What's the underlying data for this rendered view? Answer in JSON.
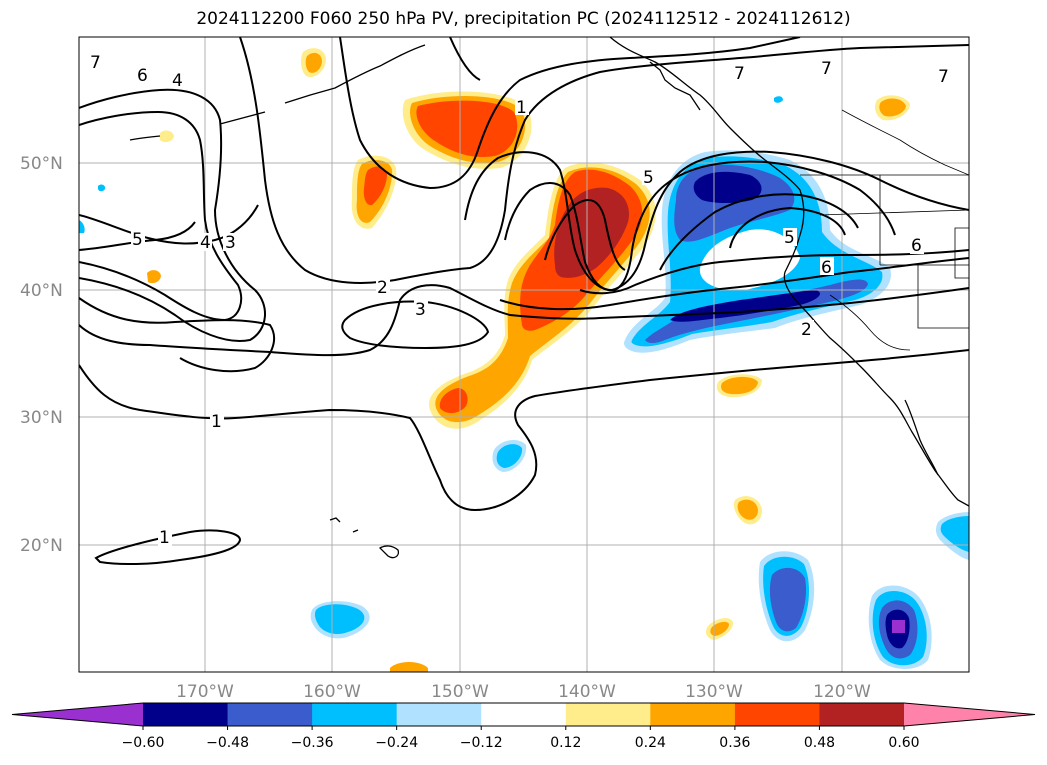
{
  "title": "2024112200 F060 250 hPa PV, precipitation PC (2024112512 - 2024112612)",
  "latitude_labels": [
    "50°N",
    "40°N",
    "30°N",
    "20°N"
  ],
  "longitude_labels": [
    "170°W",
    "160°W",
    "150°W",
    "140°W",
    "130°W",
    "120°W"
  ],
  "pv_contour_labels": [
    "7",
    "6",
    "4",
    "5",
    "4",
    "3",
    "2",
    "3",
    "1",
    "1",
    "1",
    "5",
    "7",
    "5",
    "6",
    "6",
    "2",
    "7",
    "7"
  ],
  "colorbar": {
    "tick_labels": [
      "−0.60",
      "−0.48",
      "−0.36",
      "−0.24",
      "−0.12",
      "0.12",
      "0.24",
      "0.36",
      "0.48",
      "0.60"
    ],
    "colors": [
      "#9b30d0",
      "#00008b",
      "#3a5ccc",
      "#00bfff",
      "#b0e2ff",
      "#ffffff",
      "#ffec8b",
      "#ffa500",
      "#ff4500",
      "#b22222",
      "#ff82ab"
    ]
  }
}
